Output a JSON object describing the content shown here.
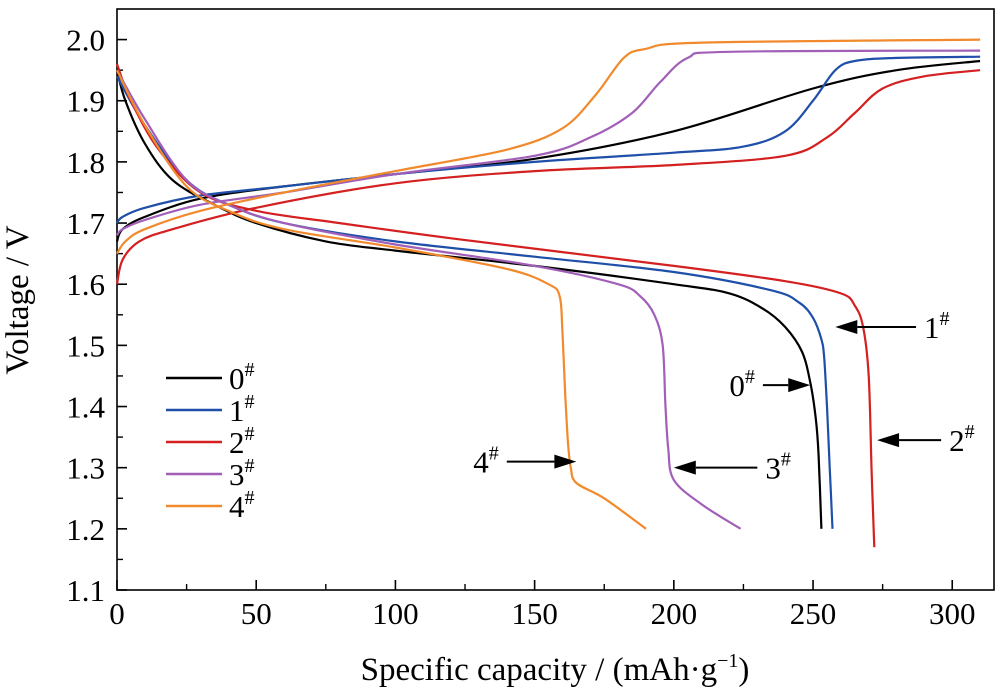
{
  "chart_data": {
    "type": "line",
    "title": "",
    "xlabel": "Specific capacity / (mAh·g",
    "xlabel_sup": "−1",
    "xlabel_end": ")",
    "ylabel": "Voltage / V",
    "xlim": [
      0,
      315
    ],
    "ylim": [
      1.1,
      2.05
    ],
    "x_ticks": [
      0,
      50,
      100,
      150,
      200,
      250,
      300
    ],
    "y_ticks": [
      1.1,
      1.2,
      1.3,
      1.4,
      1.5,
      1.6,
      1.7,
      1.8,
      1.9,
      2.0
    ],
    "x_tick_labels": [
      "0",
      "50",
      "100",
      "150",
      "200",
      "250",
      "300"
    ],
    "y_tick_labels": [
      "1.1",
      "1.2",
      "1.3",
      "1.4",
      "1.5",
      "1.6",
      "1.7",
      "1.8",
      "1.9",
      "2.0"
    ],
    "grid": false,
    "legend_position": "bottom-left",
    "series": [
      {
        "name": "0",
        "sup": "#",
        "color": "#000000",
        "discharge": [
          [
            0,
            1.95
          ],
          [
            3,
            1.9
          ],
          [
            10,
            1.83
          ],
          [
            20,
            1.77
          ],
          [
            35,
            1.73
          ],
          [
            50,
            1.7
          ],
          [
            75,
            1.67
          ],
          [
            100,
            1.655
          ],
          [
            150,
            1.63
          ],
          [
            200,
            1.6
          ],
          [
            220,
            1.585
          ],
          [
            232,
            1.56
          ],
          [
            240,
            1.53
          ],
          [
            246,
            1.49
          ],
          [
            249,
            1.44
          ],
          [
            251,
            1.38
          ],
          [
            252,
            1.32
          ],
          [
            253,
            1.2
          ]
        ],
        "charge": [
          [
            0,
            1.67
          ],
          [
            2,
            1.69
          ],
          [
            10,
            1.71
          ],
          [
            30,
            1.74
          ],
          [
            60,
            1.76
          ],
          [
            100,
            1.78
          ],
          [
            150,
            1.805
          ],
          [
            200,
            1.85
          ],
          [
            250,
            1.92
          ],
          [
            280,
            1.95
          ],
          [
            310,
            1.965
          ]
        ]
      },
      {
        "name": "1",
        "sup": "#",
        "color": "#1f4fa8",
        "discharge": [
          [
            0,
            1.94
          ],
          [
            10,
            1.86
          ],
          [
            25,
            1.77
          ],
          [
            40,
            1.73
          ],
          [
            60,
            1.7
          ],
          [
            100,
            1.67
          ],
          [
            150,
            1.645
          ],
          [
            200,
            1.62
          ],
          [
            235,
            1.59
          ],
          [
            245,
            1.57
          ],
          [
            250,
            1.545
          ],
          [
            253,
            1.51
          ],
          [
            254,
            1.48
          ],
          [
            255,
            1.4
          ],
          [
            256,
            1.3
          ],
          [
            257,
            1.2
          ]
        ],
        "charge": [
          [
            0,
            1.7
          ],
          [
            2,
            1.71
          ],
          [
            10,
            1.725
          ],
          [
            30,
            1.745
          ],
          [
            60,
            1.76
          ],
          [
            100,
            1.78
          ],
          [
            150,
            1.8
          ],
          [
            200,
            1.815
          ],
          [
            225,
            1.825
          ],
          [
            240,
            1.85
          ],
          [
            250,
            1.9
          ],
          [
            258,
            1.95
          ],
          [
            265,
            1.965
          ],
          [
            280,
            1.97
          ],
          [
            310,
            1.972
          ]
        ]
      },
      {
        "name": "2",
        "sup": "#",
        "color": "#d42020",
        "discharge": [
          [
            0,
            1.96
          ],
          [
            5,
            1.9
          ],
          [
            15,
            1.82
          ],
          [
            30,
            1.75
          ],
          [
            50,
            1.72
          ],
          [
            80,
            1.7
          ],
          [
            120,
            1.675
          ],
          [
            200,
            1.63
          ],
          [
            240,
            1.605
          ],
          [
            260,
            1.585
          ],
          [
            265,
            1.565
          ],
          [
            268,
            1.53
          ],
          [
            270,
            1.45
          ],
          [
            271,
            1.3
          ],
          [
            272,
            1.17
          ]
        ],
        "charge": [
          [
            0,
            1.6
          ],
          [
            2,
            1.64
          ],
          [
            8,
            1.67
          ],
          [
            20,
            1.69
          ],
          [
            50,
            1.725
          ],
          [
            100,
            1.765
          ],
          [
            150,
            1.785
          ],
          [
            200,
            1.795
          ],
          [
            240,
            1.81
          ],
          [
            255,
            1.84
          ],
          [
            265,
            1.88
          ],
          [
            275,
            1.92
          ],
          [
            290,
            1.94
          ],
          [
            310,
            1.95
          ]
        ]
      },
      {
        "name": "3",
        "sup": "#",
        "color": "#a25fb8",
        "discharge": [
          [
            0,
            1.95
          ],
          [
            10,
            1.87
          ],
          [
            25,
            1.77
          ],
          [
            40,
            1.73
          ],
          [
            60,
            1.7
          ],
          [
            100,
            1.665
          ],
          [
            150,
            1.63
          ],
          [
            180,
            1.6
          ],
          [
            188,
            1.58
          ],
          [
            193,
            1.55
          ],
          [
            196,
            1.5
          ],
          [
            197,
            1.4
          ],
          [
            198,
            1.33
          ],
          [
            200,
            1.28
          ],
          [
            210,
            1.24
          ],
          [
            224,
            1.2
          ]
        ],
        "charge": [
          [
            0,
            1.68
          ],
          [
            2,
            1.69
          ],
          [
            10,
            1.705
          ],
          [
            30,
            1.73
          ],
          [
            60,
            1.75
          ],
          [
            100,
            1.78
          ],
          [
            150,
            1.81
          ],
          [
            170,
            1.84
          ],
          [
            185,
            1.88
          ],
          [
            195,
            1.93
          ],
          [
            205,
            1.97
          ],
          [
            220,
            1.98
          ],
          [
            310,
            1.982
          ]
        ]
      },
      {
        "name": "4",
        "sup": "#",
        "color": "#f08a2c",
        "discharge": [
          [
            0,
            1.95
          ],
          [
            10,
            1.86
          ],
          [
            25,
            1.76
          ],
          [
            40,
            1.72
          ],
          [
            60,
            1.69
          ],
          [
            100,
            1.66
          ],
          [
            140,
            1.625
          ],
          [
            155,
            1.6
          ],
          [
            159,
            1.58
          ],
          [
            160,
            1.52
          ],
          [
            161,
            1.42
          ],
          [
            162,
            1.34
          ],
          [
            163,
            1.3
          ],
          [
            165,
            1.275
          ],
          [
            175,
            1.25
          ],
          [
            190,
            1.2
          ]
        ],
        "charge": [
          [
            0,
            1.65
          ],
          [
            3,
            1.67
          ],
          [
            10,
            1.69
          ],
          [
            30,
            1.72
          ],
          [
            60,
            1.75
          ],
          [
            100,
            1.785
          ],
          [
            140,
            1.82
          ],
          [
            160,
            1.855
          ],
          [
            172,
            1.91
          ],
          [
            182,
            1.97
          ],
          [
            190,
            1.985
          ],
          [
            210,
            1.995
          ],
          [
            310,
            2.0
          ]
        ]
      }
    ],
    "annotations": [
      {
        "label": "0",
        "sup": "#",
        "text_pos": [
          215,
          1.43
        ],
        "tail": [
          232,
          1.435
        ],
        "tip": [
          249,
          1.435
        ]
      },
      {
        "label": "1",
        "sup": "#",
        "text_pos": [
          289,
          1.535
        ],
        "tail": [
          287,
          1.53
        ],
        "tip": [
          258,
          1.53
        ]
      },
      {
        "label": "2",
        "sup": "#",
        "text_pos": [
          298,
          1.35
        ],
        "tail": [
          296,
          1.345
        ],
        "tip": [
          273,
          1.345
        ]
      },
      {
        "label": "3",
        "sup": "#",
        "text_pos": [
          231,
          1.3
        ],
        "tail": [
          230,
          1.3
        ],
        "tip": [
          200,
          1.3
        ]
      },
      {
        "label": "4",
        "sup": "#",
        "text_pos": [
          136,
          1.31
        ],
        "tail": [
          140,
          1.31
        ],
        "tip": [
          165,
          1.31
        ]
      }
    ]
  }
}
